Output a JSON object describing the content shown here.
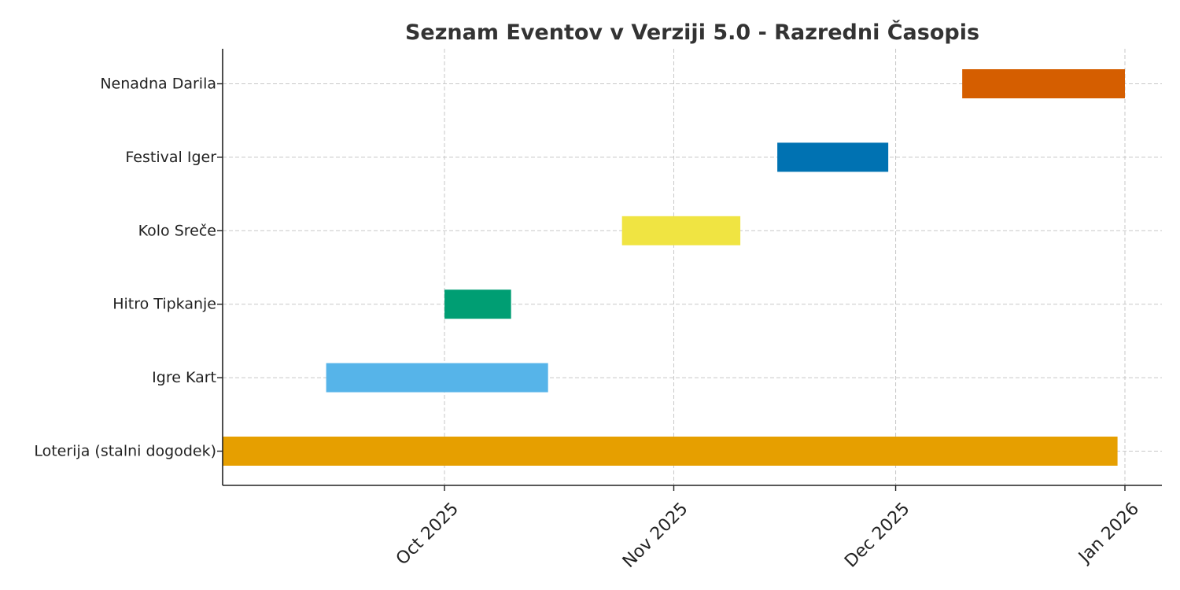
{
  "chart_data": {
    "type": "bar",
    "orientation": "horizontal-gantt",
    "title": "Seznam Eventov v Verziji 5.0 - Razredni Časopis",
    "xlabel": "",
    "ylabel": "",
    "xlim": [
      "2025-09-01",
      "2026-01-06"
    ],
    "grid": true,
    "x_ticks": [
      {
        "date": "2025-10-01",
        "label": "Oct 2025"
      },
      {
        "date": "2025-11-01",
        "label": "Nov 2025"
      },
      {
        "date": "2025-12-01",
        "label": "Dec 2025"
      },
      {
        "date": "2026-01-01",
        "label": "Jan 2026"
      }
    ],
    "tasks": [
      {
        "name": "Loterija (stalni dogodek)",
        "start": "2025-09-01",
        "end": "2025-12-31",
        "color": "#E69F00"
      },
      {
        "name": "Igre Kart",
        "start": "2025-09-15",
        "end": "2025-10-15",
        "color": "#56B4E9"
      },
      {
        "name": "Hitro Tipkanje",
        "start": "2025-10-01",
        "end": "2025-10-10",
        "color": "#009E73"
      },
      {
        "name": "Kolo Sreče",
        "start": "2025-10-25",
        "end": "2025-11-10",
        "color": "#F0E442"
      },
      {
        "name": "Festival Iger",
        "start": "2025-11-15",
        "end": "2025-11-30",
        "color": "#0072B2"
      },
      {
        "name": "Nenadna Darila",
        "start": "2025-12-10",
        "end": "2026-01-01",
        "color": "#D55E00"
      }
    ]
  }
}
